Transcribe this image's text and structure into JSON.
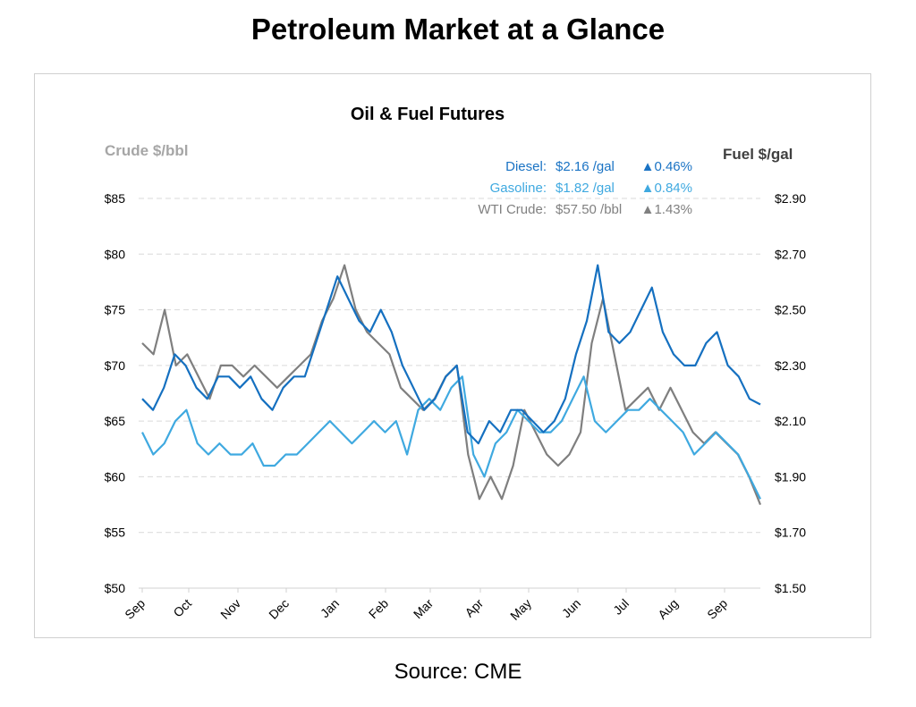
{
  "page": {
    "title": "Petroleum Market at a Glance",
    "source": "Source: CME"
  },
  "chart_data": {
    "type": "line",
    "title": "Oil & Fuel Futures",
    "ylabel_left": "Crude $/bbl",
    "ylabel_right": "Fuel $/gal",
    "ylim_left": [
      50,
      85
    ],
    "ylim_right": [
      1.5,
      2.9
    ],
    "yticks_left": [
      "$50",
      "$55",
      "$60",
      "$65",
      "$70",
      "$75",
      "$80",
      "$85"
    ],
    "yticks_right": [
      "$1.50",
      "$1.70",
      "$1.90",
      "$2.10",
      "$2.30",
      "$2.50",
      "$2.70",
      "$2.90"
    ],
    "xticks": [
      "Sep",
      "Oct",
      "Nov",
      "Dec",
      "Jan",
      "Feb",
      "Mar",
      "Apr",
      "May",
      "Jun",
      "Jul",
      "Aug",
      "Sep"
    ],
    "grid": true,
    "legend": [
      {
        "name": "Diesel:",
        "price": "$2.16 /gal",
        "change": "▲0.46%",
        "color": "#1a73c4"
      },
      {
        "name": "Gasoline:",
        "price": "$1.82 /gal",
        "change": "▲0.84%",
        "color": "#3fa9e0"
      },
      {
        "name": "WTI Crude:",
        "price": "$57.50 /bbl",
        "change": "▲1.43%",
        "color": "#808080"
      }
    ],
    "series": [
      {
        "name": "Diesel",
        "axis": "right",
        "color": "#1570c0",
        "values": [
          2.18,
          2.14,
          2.22,
          2.34,
          2.3,
          2.22,
          2.18,
          2.26,
          2.26,
          2.22,
          2.26,
          2.18,
          2.14,
          2.22,
          2.26,
          2.26,
          2.38,
          2.5,
          2.62,
          2.54,
          2.46,
          2.42,
          2.5,
          2.42,
          2.3,
          2.22,
          2.14,
          2.18,
          2.26,
          2.3,
          2.06,
          2.02,
          2.1,
          2.06,
          2.14,
          2.14,
          2.1,
          2.06,
          2.1,
          2.18,
          2.34,
          2.46,
          2.66,
          2.42,
          2.38,
          2.42,
          2.5,
          2.58,
          2.42,
          2.34,
          2.3,
          2.3,
          2.38,
          2.42,
          2.3,
          2.26,
          2.18,
          2.16
        ]
      },
      {
        "name": "Gasoline",
        "axis": "right",
        "color": "#3fa9e0",
        "values": [
          2.06,
          1.98,
          2.02,
          2.1,
          2.14,
          2.02,
          1.98,
          2.02,
          1.98,
          1.98,
          2.02,
          1.94,
          1.94,
          1.98,
          1.98,
          2.02,
          2.06,
          2.1,
          2.06,
          2.02,
          2.06,
          2.1,
          2.06,
          2.1,
          1.98,
          2.14,
          2.18,
          2.14,
          2.22,
          2.26,
          1.98,
          1.9,
          2.02,
          2.06,
          2.14,
          2.1,
          2.06,
          2.06,
          2.1,
          2.18,
          2.26,
          2.1,
          2.06,
          2.1,
          2.14,
          2.14,
          2.18,
          2.14,
          2.1,
          2.06,
          1.98,
          2.02,
          2.06,
          2.02,
          1.98,
          1.9,
          1.82
        ]
      },
      {
        "name": "WTI Crude",
        "axis": "left",
        "color": "#7f7f7f",
        "values": [
          72,
          71,
          75,
          70,
          71,
          69,
          67,
          70,
          70,
          69,
          70,
          69,
          68,
          69,
          70,
          71,
          74,
          76,
          79,
          75,
          73,
          72,
          71,
          68,
          67,
          66,
          67,
          69,
          70,
          62,
          58,
          60,
          58,
          61,
          66,
          64,
          62,
          61,
          62,
          64,
          72,
          76,
          71,
          66,
          67,
          68,
          66,
          68,
          66,
          64,
          63,
          64,
          63,
          62,
          60,
          57.5
        ]
      }
    ]
  }
}
